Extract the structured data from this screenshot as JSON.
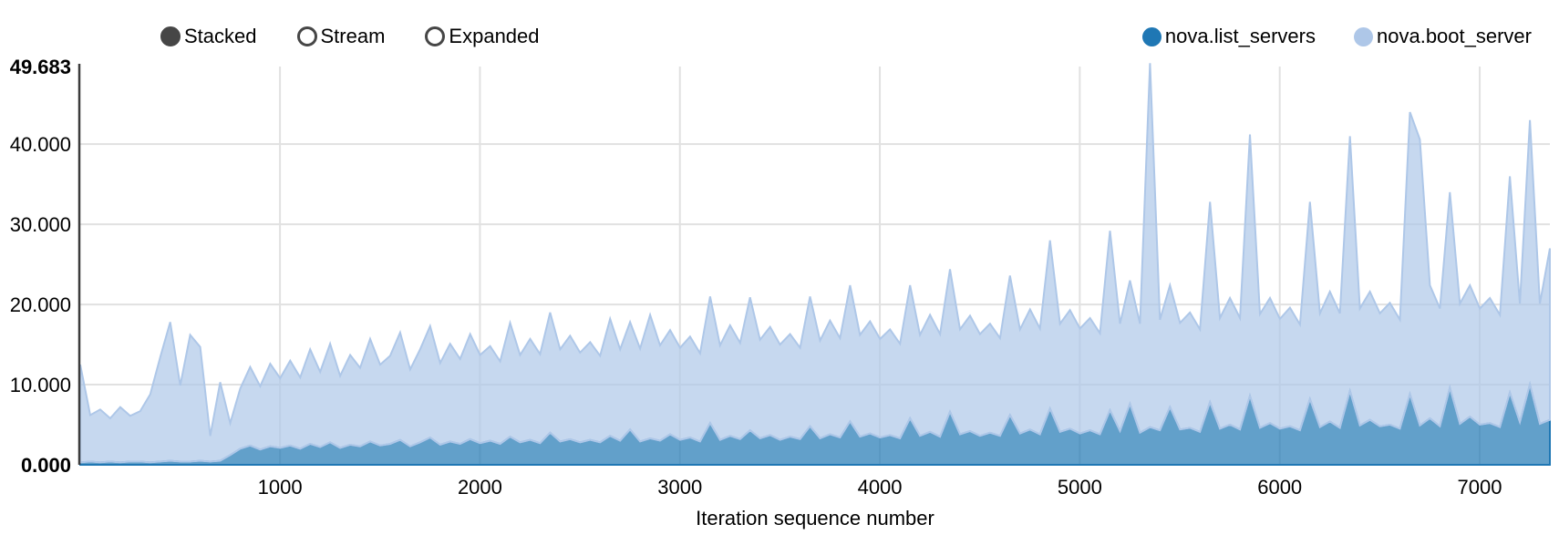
{
  "controls": {
    "items": [
      {
        "label": "Stacked",
        "selected": true
      },
      {
        "label": "Stream",
        "selected": false
      },
      {
        "label": "Expanded",
        "selected": false
      }
    ]
  },
  "axis_title": "Iteration sequence number",
  "chart_data": {
    "type": "area",
    "stacked": true,
    "title": "",
    "xlabel": "Iteration sequence number",
    "ylabel": "",
    "grid": true,
    "legend_position": "top-right",
    "xlim": [
      1,
      7351
    ],
    "ylim": [
      0,
      49.683
    ],
    "x_start": 1,
    "x_step": 50,
    "x_ticks": [
      {
        "value": 1000,
        "label": "1000"
      },
      {
        "value": 2000,
        "label": "2000"
      },
      {
        "value": 3000,
        "label": "3000"
      },
      {
        "value": 4000,
        "label": "4000"
      },
      {
        "value": 5000,
        "label": "5000"
      },
      {
        "value": 6000,
        "label": "6000"
      },
      {
        "value": 7000,
        "label": "7000"
      }
    ],
    "y_ticks": [
      {
        "value": 0,
        "label": "0.000",
        "bold": true
      },
      {
        "value": 10,
        "label": "10.000",
        "bold": false
      },
      {
        "value": 20,
        "label": "20.000",
        "bold": false
      },
      {
        "value": 30,
        "label": "30.000",
        "bold": false
      },
      {
        "value": 40,
        "label": "40.000",
        "bold": false
      },
      {
        "value": 49.683,
        "label": "49.683",
        "bold": true
      }
    ],
    "series": [
      {
        "name": "nova.list_servers",
        "color": "#1f77b4",
        "fill_opacity": 0.7,
        "values": [
          0.3,
          0.4,
          0.3,
          0.4,
          0.3,
          0.4,
          0.4,
          0.3,
          0.4,
          0.5,
          0.4,
          0.4,
          0.5,
          0.4,
          0.5,
          1.2,
          2.0,
          2.4,
          1.9,
          2.3,
          2.1,
          2.4,
          2.0,
          2.6,
          2.2,
          2.8,
          2.1,
          2.5,
          2.3,
          2.9,
          2.4,
          2.6,
          3.1,
          2.3,
          2.8,
          3.4,
          2.5,
          2.9,
          2.6,
          3.2,
          2.7,
          3.0,
          2.6,
          3.5,
          2.8,
          3.1,
          2.7,
          4.0,
          2.9,
          3.2,
          2.8,
          3.1,
          2.8,
          3.6,
          3.0,
          4.4,
          2.9,
          3.3,
          3.0,
          3.8,
          3.1,
          3.4,
          2.9,
          5.2,
          3.1,
          3.6,
          3.2,
          4.3,
          3.3,
          3.7,
          3.1,
          3.5,
          3.2,
          4.8,
          3.3,
          3.8,
          3.4,
          5.4,
          3.5,
          3.9,
          3.4,
          3.7,
          3.3,
          5.8,
          3.6,
          4.1,
          3.5,
          6.6,
          3.8,
          4.2,
          3.6,
          4.0,
          3.6,
          6.2,
          3.9,
          4.4,
          3.8,
          7.0,
          4.1,
          4.5,
          3.9,
          4.3,
          3.8,
          6.8,
          4.2,
          7.6,
          4.0,
          4.7,
          4.3,
          7.2,
          4.4,
          4.6,
          4.1,
          7.8,
          4.5,
          5.0,
          4.4,
          8.6,
          4.6,
          5.2,
          4.5,
          4.8,
          4.3,
          8.2,
          4.7,
          5.4,
          4.6,
          9.2,
          4.9,
          5.6,
          4.8,
          5.0,
          4.5,
          8.8,
          4.9,
          5.8,
          4.8,
          9.6,
          5.1,
          6.0,
          5.0,
          5.2,
          4.7,
          9.0,
          5.3,
          10.0,
          5.1,
          5.6
        ]
      },
      {
        "name": "nova.boot_server",
        "color": "#aec7e8",
        "fill_opacity": 0.7,
        "values": [
          12.2,
          5.8,
          6.6,
          5.4,
          6.9,
          5.7,
          6.3,
          8.5,
          13.0,
          17.3,
          9.5,
          15.8,
          14.2,
          3.2,
          9.8,
          4.0,
          7.5,
          9.8,
          7.9,
          10.3,
          8.7,
          10.6,
          8.9,
          11.8,
          9.4,
          12.3,
          9.0,
          11.2,
          9.8,
          12.8,
          10.1,
          11.0,
          13.4,
          9.6,
          11.6,
          13.9,
          10.2,
          12.2,
          10.6,
          13.1,
          11.0,
          11.8,
          10.3,
          14.2,
          10.9,
          12.6,
          11.1,
          15.0,
          11.5,
          12.9,
          11.2,
          12.2,
          10.8,
          14.6,
          11.4,
          13.4,
          11.6,
          15.4,
          11.9,
          13.0,
          11.5,
          12.6,
          11.0,
          15.8,
          11.8,
          13.8,
          12.0,
          16.6,
          12.3,
          13.5,
          11.9,
          12.8,
          11.4,
          16.2,
          12.2,
          14.2,
          12.4,
          17.0,
          12.7,
          14.0,
          12.3,
          13.2,
          11.8,
          16.6,
          12.6,
          14.6,
          12.8,
          17.8,
          13.1,
          14.4,
          12.7,
          13.6,
          12.2,
          17.4,
          13.0,
          15.0,
          13.2,
          21.0,
          13.5,
          14.8,
          13.1,
          14.0,
          12.6,
          22.4,
          13.4,
          15.4,
          13.6,
          45.4,
          13.8,
          15.2,
          13.3,
          14.4,
          12.8,
          25.0,
          13.8,
          15.8,
          13.9,
          32.6,
          14.2,
          15.6,
          13.7,
          14.8,
          13.2,
          24.6,
          14.2,
          16.2,
          14.3,
          31.8,
          14.6,
          16.0,
          14.1,
          15.2,
          13.6,
          35.2,
          35.7,
          16.6,
          14.7,
          24.4,
          15.0,
          16.4,
          14.5,
          15.6,
          14.0,
          27.0,
          14.8,
          33.0,
          15.0,
          21.4
        ]
      }
    ]
  },
  "style": {
    "grid_color": "#e1e1e1",
    "axis_line_color": "#3c3c3c",
    "control_color": "#464646",
    "text_color": "#000000"
  }
}
